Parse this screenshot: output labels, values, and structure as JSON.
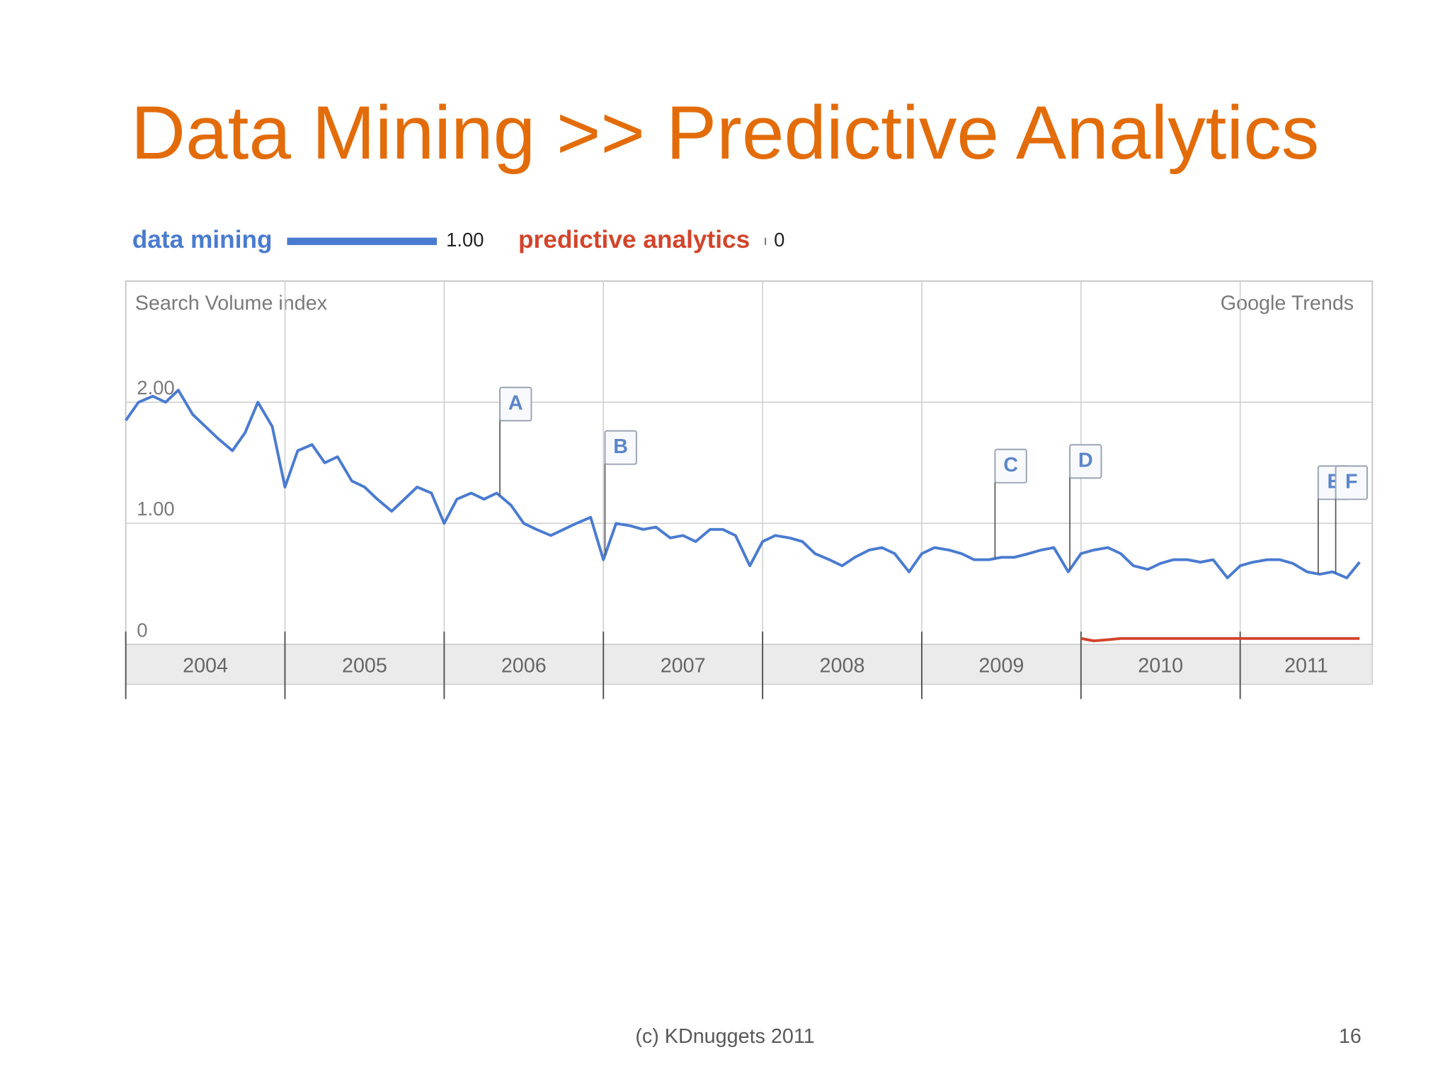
{
  "slide": {
    "title": "Data Mining >> Predictive Analytics",
    "footer": "(c) KDnuggets 2011",
    "page_number": "16"
  },
  "chart_data": {
    "type": "line",
    "y_axis_label": "Search Volume index",
    "source": "Google Trends",
    "x": [
      2004,
      2004.08,
      2004.17,
      2004.25,
      2004.33,
      2004.42,
      2004.5,
      2004.58,
      2004.67,
      2004.75,
      2004.83,
      2004.92,
      2005,
      2005.08,
      2005.17,
      2005.25,
      2005.33,
      2005.42,
      2005.5,
      2005.58,
      2005.67,
      2005.75,
      2005.83,
      2005.92,
      2006,
      2006.08,
      2006.17,
      2006.25,
      2006.33,
      2006.42,
      2006.5,
      2006.58,
      2006.67,
      2006.75,
      2006.83,
      2006.92,
      2007,
      2007.08,
      2007.17,
      2007.25,
      2007.33,
      2007.42,
      2007.5,
      2007.58,
      2007.67,
      2007.75,
      2007.83,
      2007.92,
      2008,
      2008.08,
      2008.17,
      2008.25,
      2008.33,
      2008.42,
      2008.5,
      2008.58,
      2008.67,
      2008.75,
      2008.83,
      2008.92,
      2009,
      2009.08,
      2009.17,
      2009.25,
      2009.33,
      2009.42,
      2009.5,
      2009.58,
      2009.67,
      2009.75,
      2009.83,
      2009.92,
      2010,
      2010.08,
      2010.17,
      2010.25,
      2010.33,
      2010.42,
      2010.5,
      2010.58,
      2010.67,
      2010.75,
      2010.83,
      2010.92,
      2011,
      2011.08,
      2011.17,
      2011.25,
      2011.33,
      2011.42,
      2011.5,
      2011.58,
      2011.67,
      2011.75
    ],
    "series": [
      {
        "name": "data mining",
        "color": "#4a7bd0",
        "average": {
          "value": 1,
          "label": "1.00"
        },
        "values": [
          1.85,
          2.0,
          2.05,
          2.0,
          2.1,
          1.9,
          1.8,
          1.7,
          1.6,
          1.75,
          2.0,
          1.8,
          1.3,
          1.6,
          1.65,
          1.5,
          1.55,
          1.35,
          1.3,
          1.2,
          1.1,
          1.2,
          1.3,
          1.25,
          1.0,
          1.2,
          1.25,
          1.2,
          1.25,
          1.15,
          1.0,
          0.95,
          0.9,
          0.95,
          1.0,
          1.05,
          0.7,
          1.0,
          0.98,
          0.95,
          0.97,
          0.88,
          0.9,
          0.85,
          0.95,
          0.95,
          0.9,
          0.65,
          0.85,
          0.9,
          0.88,
          0.85,
          0.75,
          0.7,
          0.65,
          0.72,
          0.78,
          0.8,
          0.75,
          0.6,
          0.75,
          0.8,
          0.78,
          0.75,
          0.7,
          0.7,
          0.72,
          0.72,
          0.75,
          0.78,
          0.8,
          0.6,
          0.75,
          0.78,
          0.8,
          0.75,
          0.65,
          0.62,
          0.67,
          0.7,
          0.7,
          0.68,
          0.7,
          0.55,
          0.65,
          0.68,
          0.7,
          0.7,
          0.67,
          0.6,
          0.58,
          0.6,
          0.55,
          0.68
        ]
      },
      {
        "name": "predictive analytics",
        "color": "#d2452b",
        "average": 0,
        "values": [
          null,
          null,
          null,
          null,
          null,
          null,
          null,
          null,
          null,
          null,
          null,
          null,
          null,
          null,
          null,
          null,
          null,
          null,
          null,
          null,
          null,
          null,
          null,
          null,
          null,
          null,
          null,
          null,
          null,
          null,
          null,
          null,
          null,
          null,
          null,
          null,
          null,
          null,
          null,
          null,
          null,
          null,
          null,
          null,
          null,
          null,
          null,
          null,
          null,
          null,
          null,
          null,
          null,
          null,
          null,
          null,
          null,
          null,
          null,
          null,
          null,
          null,
          null,
          null,
          null,
          null,
          null,
          null,
          null,
          null,
          null,
          null,
          0.05,
          0.03,
          0.04,
          0.05,
          0.05,
          0.05,
          0.05,
          0.05,
          0.05,
          0.05,
          0.05,
          0.05,
          0.05,
          0.05,
          0.05,
          0.05,
          0.05,
          0.05,
          0.05,
          0.05,
          0.05,
          0.05
        ]
      }
    ],
    "annotations": [
      {
        "label": "A",
        "x": 2006.35
      },
      {
        "label": "B",
        "x": 2007.01
      },
      {
        "label": "C",
        "x": 2009.46
      },
      {
        "label": "D",
        "x": 2009.93
      },
      {
        "label": "E",
        "x": 2011.49
      },
      {
        "label": "F",
        "x": 2011.6
      }
    ],
    "xlim": [
      2004,
      2011.83
    ],
    "xticks": [
      2004,
      2005,
      2006,
      2007,
      2008,
      2009,
      2010,
      2011
    ],
    "ylim": [
      0,
      3
    ],
    "yticks": [
      0,
      {
        "value": 1,
        "label": "1.00"
      },
      {
        "value": 2,
        "label": "2.00"
      }
    ],
    "grid": true
  }
}
